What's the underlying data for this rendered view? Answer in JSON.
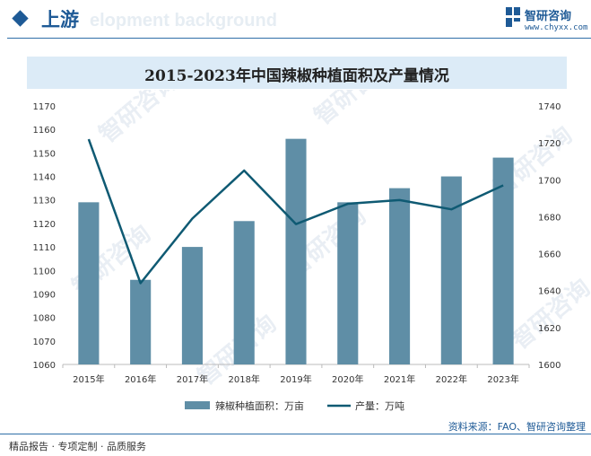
{
  "header": {
    "section_title": "上游",
    "watermark_text": "elopment background",
    "brand_name": "智研咨询",
    "brand_url": "www.chyxx.com"
  },
  "chart_data": {
    "type": "bar",
    "title": "2015-2023年中国辣椒种植面积及产量情况",
    "categories": [
      "2015年",
      "2016年",
      "2017年",
      "2018年",
      "2019年",
      "2020年",
      "2021年",
      "2022年",
      "2023年"
    ],
    "series": [
      {
        "name": "辣椒种植面积：万亩",
        "type": "bar",
        "axis": "left",
        "values": [
          1129,
          1096,
          1110,
          1121,
          1156,
          1129,
          1135,
          1140,
          1148
        ]
      },
      {
        "name": "产量：万吨",
        "type": "line",
        "axis": "right",
        "values": [
          1722,
          1644,
          1679,
          1705,
          1676,
          1687,
          1689,
          1684,
          1697
        ]
      }
    ],
    "y_left": {
      "min": 1060,
      "max": 1170,
      "step": 10
    },
    "y_right": {
      "min": 1600,
      "max": 1740,
      "step": 20
    },
    "legend_position": "bottom",
    "grid": false,
    "colors": {
      "bar": "#5f8ea6",
      "line": "#0f5a73"
    }
  },
  "footer": {
    "source": "资料来源：FAO、智研咨询整理",
    "tagline": "精品报告 · 专项定制 · 品质服务"
  },
  "watermark": {
    "text": "智研咨询"
  }
}
